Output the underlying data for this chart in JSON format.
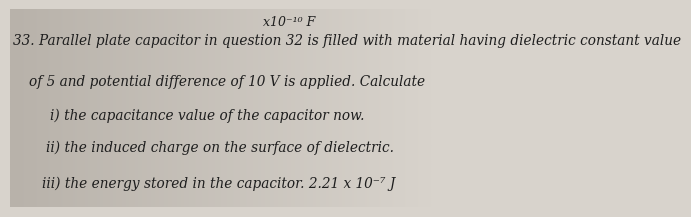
{
  "background_color_left": "#b8b2aa",
  "background_color_right": "#d8d3cc",
  "top_text": "x10⁻¹⁰ F",
  "top_text_prefix": "⨯ ",
  "line1": "33. Parallel plate capacitor in question 32 is filled with material having dielectric constant value",
  "line2": "of 5 and potential difference of 10 V is applied. Calculate",
  "line3": "i) the capacitance value of the capacitor now.",
  "line4": "ii) the induced charge on the surface of dielectric.",
  "line5": "iii) the energy stored in the capacitor. 2.21 x 10⁻⁷ J",
  "font_size_main": 9.8,
  "font_size_top": 9.0,
  "text_color": "#1e1e1e",
  "font_family": "DejaVu Serif"
}
